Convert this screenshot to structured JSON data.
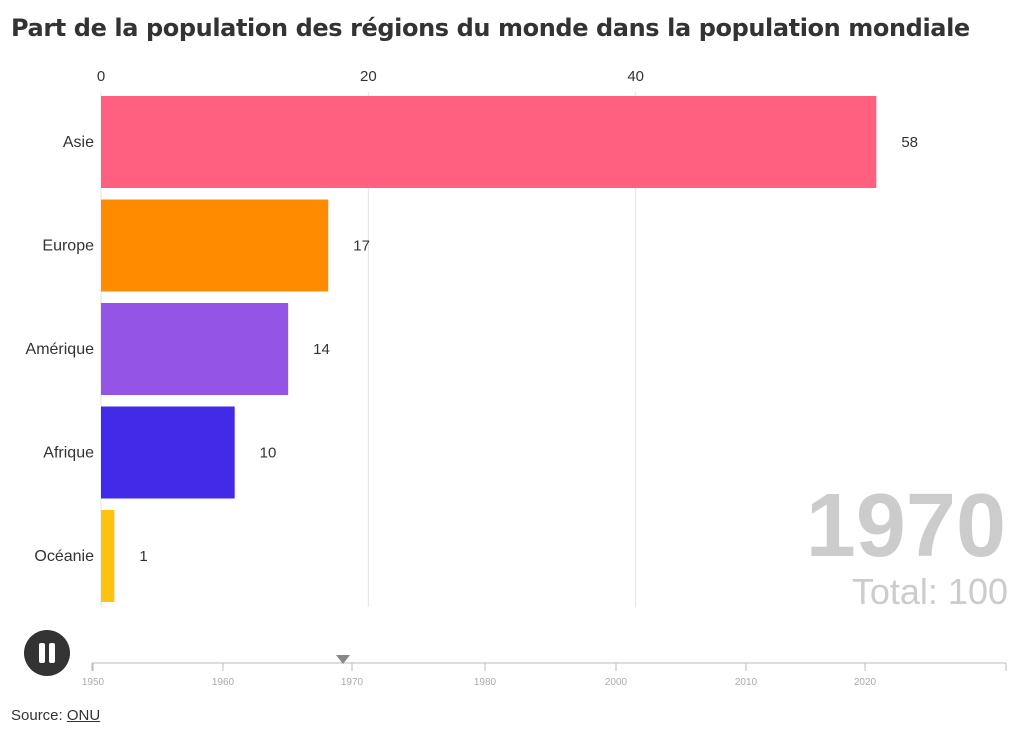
{
  "chart_data": {
    "type": "bar",
    "orientation": "horizontal",
    "title": "Part de la population des régions du monde dans la population mondiale",
    "categories": [
      "Asie",
      "Europe",
      "Amérique",
      "Afrique",
      "Océanie"
    ],
    "values": [
      58,
      17,
      14,
      10,
      1
    ],
    "value_labels": [
      "58",
      "17",
      "14",
      "10",
      "1"
    ],
    "colors": [
      "#ff6080",
      "#ff8c00",
      "#9455e6",
      "#4329e8",
      "#ffc20e"
    ],
    "x_ticks": [
      "0",
      "20",
      "40"
    ],
    "x_tick_values": [
      0,
      20,
      40
    ],
    "xlim": [
      0,
      58.5
    ],
    "grid": true,
    "current_year": "1970",
    "total_label": "Total: 100"
  },
  "timeline": {
    "ticks": [
      "1950",
      "1960",
      "1970",
      "1980",
      "2000",
      "2010",
      "2020"
    ],
    "tick_values": [
      1950,
      1960,
      1970,
      1980,
      2000,
      2010,
      2020
    ],
    "current": 1969
  },
  "controls": {
    "pause_icon": "pause-icon"
  },
  "source": {
    "label": "Source: ",
    "link_text": "ONU"
  }
}
